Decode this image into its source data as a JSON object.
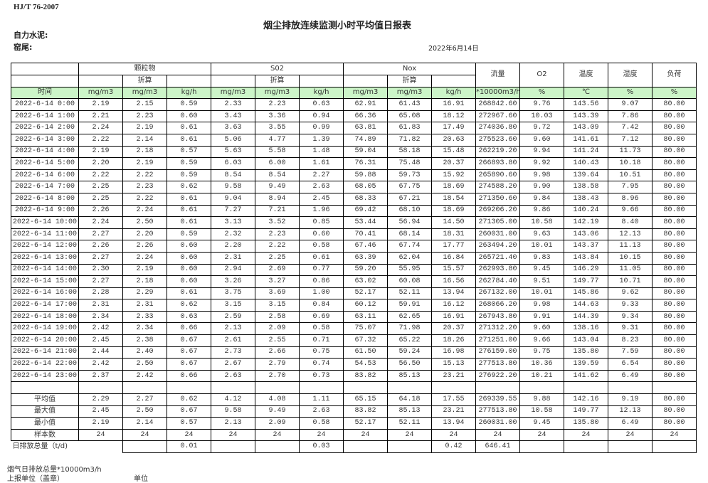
{
  "header": {
    "standard": "HJ/T  76-2007",
    "title": "烟尘排放连续监测小时平均值日报表",
    "company": "自力水泥:",
    "kiln": "窑尾:",
    "date": "2022年6月14日"
  },
  "table": {
    "groups": {
      "particulate": "颗粒物",
      "so2": "S02",
      "nox": "Nox",
      "converted": "折算"
    },
    "single_headers": {
      "flow": "流量",
      "o2": "O2",
      "temperature": "温度",
      "humidity": "湿度",
      "load": "负荷"
    },
    "units": [
      "时间",
      "mg/m3",
      "mg/m3",
      "kg/h",
      "mg/m3",
      "mg/m3",
      "kg/h",
      "mg/m3",
      "mg/m3",
      "kg/h",
      "*10000m3/h",
      "%",
      "℃",
      "%",
      "%"
    ],
    "rows": [
      [
        "2022-6-14 0:00",
        "2.19",
        "2.15",
        "0.59",
        "2.33",
        "2.23",
        "0.63",
        "62.91",
        "61.43",
        "16.91",
        "268842.60",
        "9.76",
        "143.56",
        "9.07",
        "80.00"
      ],
      [
        "2022-6-14 1:00",
        "2.21",
        "2.23",
        "0.60",
        "3.43",
        "3.36",
        "0.94",
        "66.36",
        "65.08",
        "18.12",
        "272967.60",
        "10.03",
        "143.39",
        "7.86",
        "80.00"
      ],
      [
        "2022-6-14 2:00",
        "2.24",
        "2.19",
        "0.61",
        "3.63",
        "3.55",
        "0.99",
        "63.81",
        "61.83",
        "17.49",
        "274036.80",
        "9.72",
        "143.09",
        "7.42",
        "80.00"
      ],
      [
        "2022-6-14 3:00",
        "2.22",
        "2.14",
        "0.61",
        "5.06",
        "4.77",
        "1.39",
        "74.89",
        "71.82",
        "20.63",
        "275523.60",
        "9.60",
        "141.61",
        "7.12",
        "80.00"
      ],
      [
        "2022-6-14 4:00",
        "2.19",
        "2.18",
        "0.57",
        "5.63",
        "5.58",
        "1.48",
        "59.04",
        "58.18",
        "15.48",
        "262219.20",
        "9.94",
        "141.24",
        "11.73",
        "80.00"
      ],
      [
        "2022-6-14 5:00",
        "2.20",
        "2.19",
        "0.59",
        "6.03",
        "6.00",
        "1.61",
        "76.31",
        "75.48",
        "20.37",
        "266893.80",
        "9.92",
        "140.43",
        "10.18",
        "80.00"
      ],
      [
        "2022-6-14 6:00",
        "2.22",
        "2.22",
        "0.59",
        "8.54",
        "8.54",
        "2.27",
        "59.88",
        "59.73",
        "15.92",
        "265890.60",
        "9.98",
        "139.64",
        "10.51",
        "80.00"
      ],
      [
        "2022-6-14 7:00",
        "2.25",
        "2.23",
        "0.62",
        "9.58",
        "9.49",
        "2.63",
        "68.05",
        "67.75",
        "18.69",
        "274588.20",
        "9.90",
        "138.58",
        "7.95",
        "80.00"
      ],
      [
        "2022-6-14 8:00",
        "2.25",
        "2.22",
        "0.61",
        "9.04",
        "8.94",
        "2.45",
        "68.33",
        "67.21",
        "18.54",
        "271350.60",
        "9.84",
        "138.43",
        "8.96",
        "80.00"
      ],
      [
        "2022-6-14 9:00",
        "2.26",
        "2.24",
        "0.61",
        "7.27",
        "7.21",
        "1.96",
        "69.42",
        "68.10",
        "18.69",
        "269206.20",
        "9.86",
        "140.24",
        "9.66",
        "80.00"
      ],
      [
        "2022-6-14 10:00",
        "2.24",
        "2.50",
        "0.61",
        "3.13",
        "3.52",
        "0.85",
        "53.44",
        "56.94",
        "14.50",
        "271305.00",
        "10.58",
        "142.19",
        "8.40",
        "80.00"
      ],
      [
        "2022-6-14 11:00",
        "2.27",
        "2.20",
        "0.59",
        "2.32",
        "2.23",
        "0.60",
        "70.41",
        "68.14",
        "18.31",
        "260031.00",
        "9.63",
        "143.06",
        "12.13",
        "80.00"
      ],
      [
        "2022-6-14 12:00",
        "2.26",
        "2.26",
        "0.60",
        "2.20",
        "2.22",
        "0.58",
        "67.46",
        "67.74",
        "17.77",
        "263494.20",
        "10.01",
        "143.37",
        "11.13",
        "80.00"
      ],
      [
        "2022-6-14 13:00",
        "2.27",
        "2.24",
        "0.60",
        "2.31",
        "2.25",
        "0.61",
        "63.39",
        "62.04",
        "16.84",
        "265721.40",
        "9.83",
        "143.84",
        "10.15",
        "80.00"
      ],
      [
        "2022-6-14 14:00",
        "2.30",
        "2.19",
        "0.60",
        "2.94",
        "2.69",
        "0.77",
        "59.20",
        "55.95",
        "15.57",
        "262993.80",
        "9.45",
        "146.29",
        "11.05",
        "80.00"
      ],
      [
        "2022-6-14 15:00",
        "2.27",
        "2.18",
        "0.60",
        "3.26",
        "3.27",
        "0.86",
        "63.02",
        "60.08",
        "16.56",
        "262784.40",
        "9.51",
        "149.77",
        "10.71",
        "80.00"
      ],
      [
        "2022-6-14 16:00",
        "2.28",
        "2.29",
        "0.61",
        "3.75",
        "3.69",
        "1.00",
        "52.17",
        "52.11",
        "13.94",
        "267132.00",
        "10.01",
        "145.86",
        "9.62",
        "80.00"
      ],
      [
        "2022-6-14 17:00",
        "2.31",
        "2.31",
        "0.62",
        "3.15",
        "3.15",
        "0.84",
        "60.12",
        "59.91",
        "16.12",
        "268066.20",
        "9.98",
        "144.63",
        "9.33",
        "80.00"
      ],
      [
        "2022-6-14 18:00",
        "2.34",
        "2.33",
        "0.63",
        "2.59",
        "2.58",
        "0.69",
        "63.11",
        "62.65",
        "16.91",
        "267943.80",
        "9.91",
        "144.39",
        "9.34",
        "80.00"
      ],
      [
        "2022-6-14 19:00",
        "2.42",
        "2.34",
        "0.66",
        "2.13",
        "2.09",
        "0.58",
        "75.07",
        "71.98",
        "20.37",
        "271312.20",
        "9.60",
        "138.16",
        "9.31",
        "80.00"
      ],
      [
        "2022-6-14 20:00",
        "2.45",
        "2.38",
        "0.67",
        "2.61",
        "2.55",
        "0.71",
        "67.32",
        "65.22",
        "18.26",
        "271251.00",
        "9.66",
        "143.04",
        "8.23",
        "80.00"
      ],
      [
        "2022-6-14 21:00",
        "2.44",
        "2.40",
        "0.67",
        "2.73",
        "2.66",
        "0.75",
        "61.50",
        "59.24",
        "16.98",
        "276159.00",
        "9.75",
        "135.80",
        "7.59",
        "80.00"
      ],
      [
        "2022-6-14 22:00",
        "2.42",
        "2.50",
        "0.67",
        "2.67",
        "2.79",
        "0.74",
        "54.53",
        "56.50",
        "15.13",
        "277513.80",
        "10.36",
        "139.59",
        "6.54",
        "80.00"
      ],
      [
        "2022-6-14 23:00",
        "2.37",
        "2.42",
        "0.66",
        "2.63",
        "2.70",
        "0.73",
        "83.82",
        "85.13",
        "23.21",
        "276922.20",
        "10.21",
        "141.62",
        "6.49",
        "80.00"
      ]
    ],
    "summary": [
      [
        "平均值",
        "2.29",
        "2.27",
        "0.62",
        "4.12",
        "4.08",
        "1.11",
        "65.15",
        "64.18",
        "17.55",
        "269339.55",
        "9.88",
        "142.16",
        "9.19",
        "80.00"
      ],
      [
        "最大值",
        "2.45",
        "2.50",
        "0.67",
        "9.58",
        "9.49",
        "2.63",
        "83.82",
        "85.13",
        "23.21",
        "277513.80",
        "10.58",
        "149.77",
        "12.13",
        "80.00"
      ],
      [
        "最小值",
        "2.19",
        "2.14",
        "0.57",
        "2.13",
        "2.09",
        "0.58",
        "52.17",
        "52.11",
        "13.94",
        "260031.00",
        "9.45",
        "135.80",
        "6.49",
        "80.00"
      ],
      [
        "样本数",
        "24",
        "24",
        "24",
        "24",
        "24",
        "24",
        "24",
        "24",
        "24",
        "24",
        "24",
        "24",
        "24",
        "24"
      ]
    ],
    "daily_total": {
      "label": "日排放总量（t/d)",
      "values": [
        "",
        "0.01",
        "",
        "",
        "0.03",
        "",
        "",
        "0.42",
        "646.41",
        "",
        "",
        "",
        ""
      ]
    }
  },
  "footer": {
    "flue_gas_total": "烟气日排放总量*10000m3/h",
    "reporting_unit": "上报单位（盖章）",
    "unit": "单位"
  }
}
